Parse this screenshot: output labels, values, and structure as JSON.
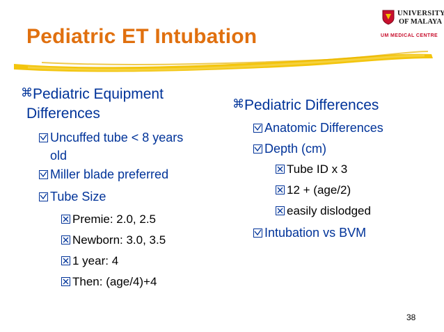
{
  "slide": {
    "title": "Pediatric ET Intubation",
    "page_number": "38"
  },
  "logo": {
    "line1": "UNIVERSITY",
    "line2": "OF MALAYA",
    "line3": "UM MEDICAL CENTRE"
  },
  "left": {
    "heading_line1": "Pediatric Equipment",
    "heading_line2": "Differences",
    "items": [
      "Uncuffed tube < 8 years",
      "old",
      "Miller blade preferred",
      "Tube Size",
      "Premie: 2.0, 2.5",
      "Newborn: 3.0, 3.5",
      "1 year: 4",
      "Then: (age/4)+4"
    ]
  },
  "right": {
    "heading": "Pediatric Differences",
    "items": [
      "Anatomic Differences",
      "Depth (cm)",
      "Tube ID x 3",
      "12 + (age/2)",
      "easily dislodged",
      "Intubation vs BVM"
    ]
  },
  "colors": {
    "title": "#e0700f",
    "text": "#003399",
    "swoosh": "#f2c200",
    "logo_red": "#c8102e"
  }
}
